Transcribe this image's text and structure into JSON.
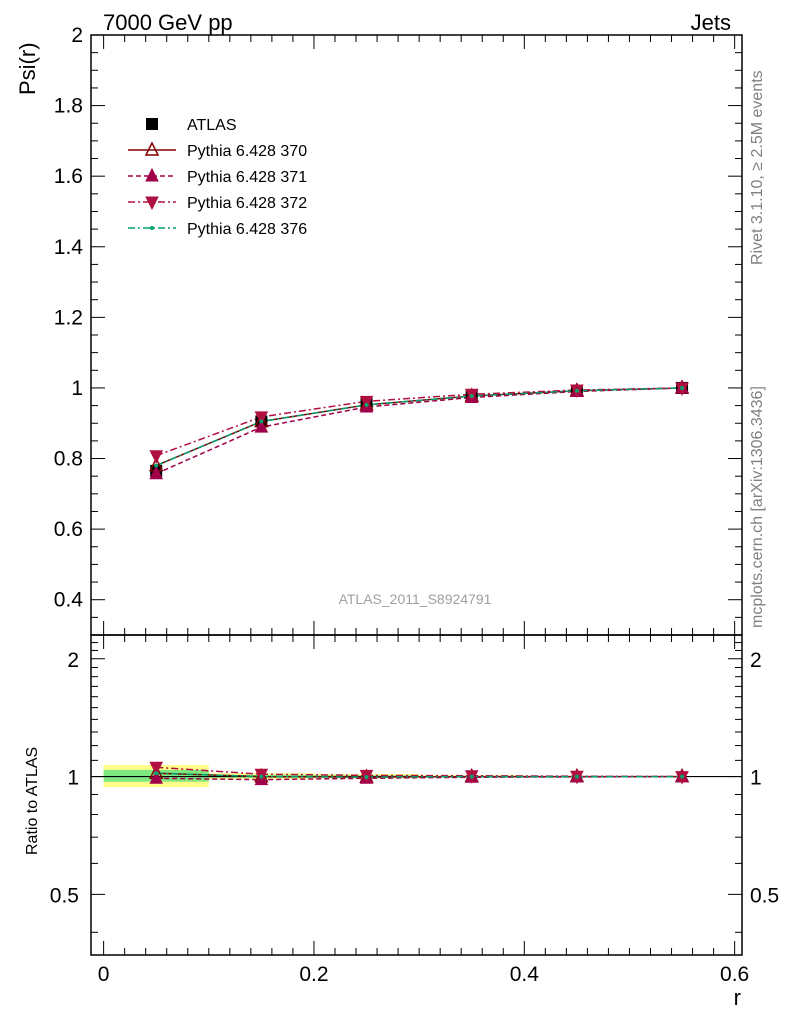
{
  "header": {
    "energy_label": "7000 GeV pp",
    "process_label": "Jets",
    "side_label_top": "Rivet 3.1.10, ≥ 2.5M events",
    "side_label_bottom": "mcplots.cern.ch [arXiv:1306.3436]",
    "analysis_watermark": "ATLAS_2011_S8924791"
  },
  "chart_data": [
    {
      "type": "line",
      "ylabel": "Psi(r)",
      "xlim": [
        -0.012,
        0.607
      ],
      "ylim": [
        0.3,
        2.0
      ],
      "yticks": [
        0.4,
        0.6,
        0.8,
        1.0,
        1.2,
        1.4,
        1.6,
        1.8,
        2.0
      ],
      "ytick_labels": [
        "0.4",
        "0.6",
        "0.8",
        "1",
        "1.2",
        "1.4",
        "1.6",
        "1.8",
        "2"
      ],
      "legend_position": "top-left",
      "x": [
        0.05,
        0.15,
        0.25,
        0.35,
        0.45,
        0.55
      ],
      "series": [
        {
          "name": "ATLAS",
          "color": "#000000",
          "marker": "square",
          "line": "none",
          "values": [
            0.765,
            0.905,
            0.955,
            0.977,
            0.992,
            1.0
          ]
        },
        {
          "name": "Pythia 6.428 370",
          "color": "#800000",
          "marker": "triangle-up-open",
          "line": "solid",
          "values": [
            0.78,
            0.905,
            0.952,
            0.977,
            0.992,
            1.0
          ]
        },
        {
          "name": "Pythia 6.428 371",
          "color": "#a0004a",
          "marker": "triangle-up",
          "line": "dashed",
          "values": [
            0.757,
            0.889,
            0.946,
            0.973,
            0.99,
            1.0
          ]
        },
        {
          "name": "Pythia 6.428 372",
          "color": "#b01040",
          "marker": "triangle-down",
          "line": "dashdot",
          "values": [
            0.808,
            0.918,
            0.962,
            0.982,
            0.994,
            1.0
          ]
        },
        {
          "name": "Pythia 6.428 376",
          "color": "#00a070",
          "marker": "dot",
          "line": "dashdot",
          "values": [
            0.78,
            0.905,
            0.952,
            0.977,
            0.992,
            1.0
          ]
        }
      ]
    },
    {
      "type": "line",
      "xlabel": "r",
      "ylabel": "Ratio to ATLAS",
      "xlim": [
        -0.012,
        0.607
      ],
      "ylim": [
        0.35,
        2.3
      ],
      "ylog": true,
      "xticks": [
        0,
        0.2,
        0.4,
        0.6
      ],
      "xtick_labels": [
        "0",
        "0.2",
        "0.4",
        "0.6"
      ],
      "yticks": [
        0.5,
        1,
        2
      ],
      "ytick_labels": [
        "0.5",
        "1",
        "2"
      ],
      "uncertainty_bands": [
        {
          "x": [
            0.0,
            0.1
          ],
          "yellow": [
            0.94,
            1.07
          ],
          "green": [
            0.97,
            1.04
          ]
        },
        {
          "x": [
            0.1,
            0.2
          ],
          "yellow": [
            0.985,
            1.02
          ],
          "green": [
            0.993,
            1.01
          ]
        },
        {
          "x": [
            0.2,
            0.3
          ],
          "yellow": [
            0.99,
            1.015
          ],
          "green": [
            0.995,
            1.008
          ]
        },
        {
          "x": [
            0.3,
            0.4
          ],
          "yellow": [
            0.995,
            1.008
          ],
          "green": [
            0.998,
            1.004
          ]
        },
        {
          "x": [
            0.4,
            0.5
          ],
          "yellow": [
            0.997,
            1.004
          ],
          "green": [
            0.999,
            1.002
          ]
        },
        {
          "x": [
            0.5,
            0.6
          ],
          "yellow": [
            0.999,
            1.001
          ],
          "green": [
            0.9995,
            1.0005
          ]
        }
      ],
      "x": [
        0.05,
        0.15,
        0.25,
        0.35,
        0.45,
        0.55
      ],
      "series": [
        {
          "name": "Pythia 6.428 370",
          "color": "#800000",
          "marker": "triangle-up-open",
          "line": "solid",
          "values": [
            1.02,
            1.0,
            0.997,
            1.0,
            1.0,
            1.0
          ]
        },
        {
          "name": "Pythia 6.428 371",
          "color": "#a0004a",
          "marker": "triangle-up",
          "line": "dashed",
          "values": [
            0.99,
            0.982,
            0.99,
            0.996,
            0.998,
            1.0
          ]
        },
        {
          "name": "Pythia 6.428 372",
          "color": "#b01040",
          "marker": "triangle-down",
          "line": "dashdot",
          "values": [
            1.056,
            1.014,
            1.007,
            1.005,
            1.002,
            1.0
          ]
        },
        {
          "name": "Pythia 6.428 376",
          "color": "#00a070",
          "marker": "dot",
          "line": "dashdot",
          "values": [
            1.02,
            1.0,
            0.997,
            1.0,
            1.0,
            1.0
          ]
        }
      ]
    }
  ],
  "colors": {
    "band_yellow": "#ffff8a",
    "band_green": "#80e880"
  }
}
